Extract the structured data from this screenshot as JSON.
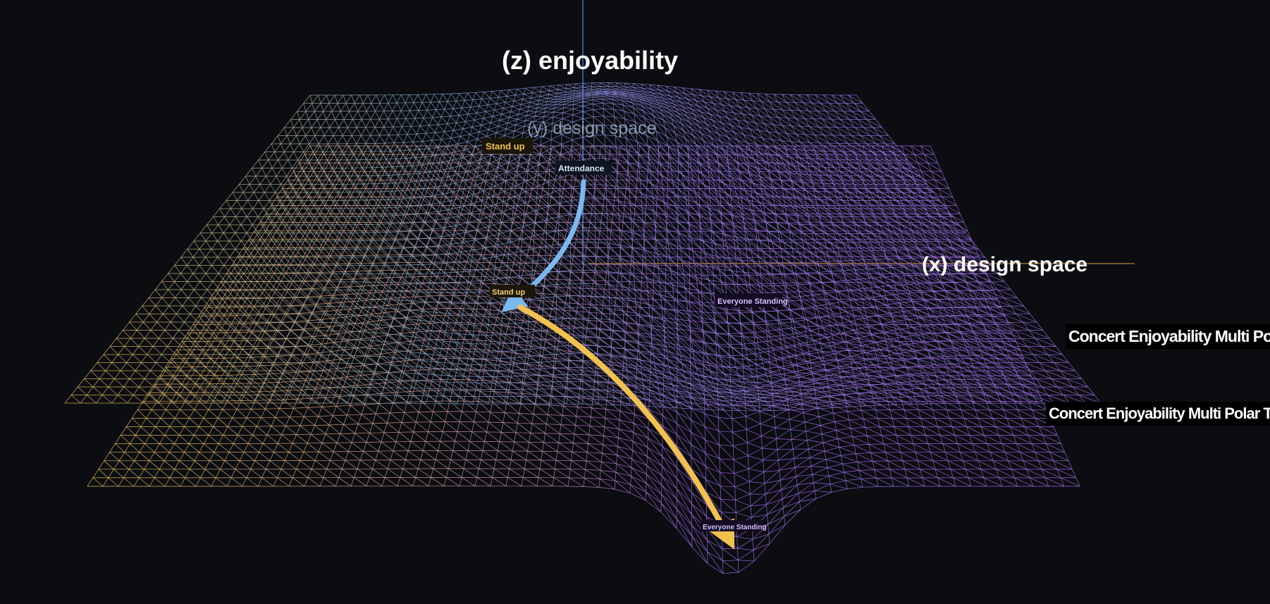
{
  "axes": {
    "z_label": "(z) enjoyability",
    "y_label": "(y) design space",
    "x_label": "(x) design space"
  },
  "surfaces": [
    {
      "caption": "Concert Enjoyability Multi Polar Trap",
      "start_marker": "Stand up",
      "start_label": "Attendance",
      "end_label": "Everyone Standing",
      "colors": {
        "left": "#f2c14e",
        "mid": "#6fa8d6",
        "right": "#a16ae8"
      }
    },
    {
      "caption": "Concert Enjoyability Multi Polar Trap",
      "start_label": "Stand up",
      "end_label": "Everyone Standing",
      "colors": {
        "left": "#f2c14e",
        "right": "#a16ae8"
      }
    }
  ],
  "arrows": {
    "upper_color": "#7ab8f0",
    "lower_color": "#f2c14e"
  },
  "axis_colors": {
    "z": "#3a6fd8",
    "x": "#e0a040"
  }
}
